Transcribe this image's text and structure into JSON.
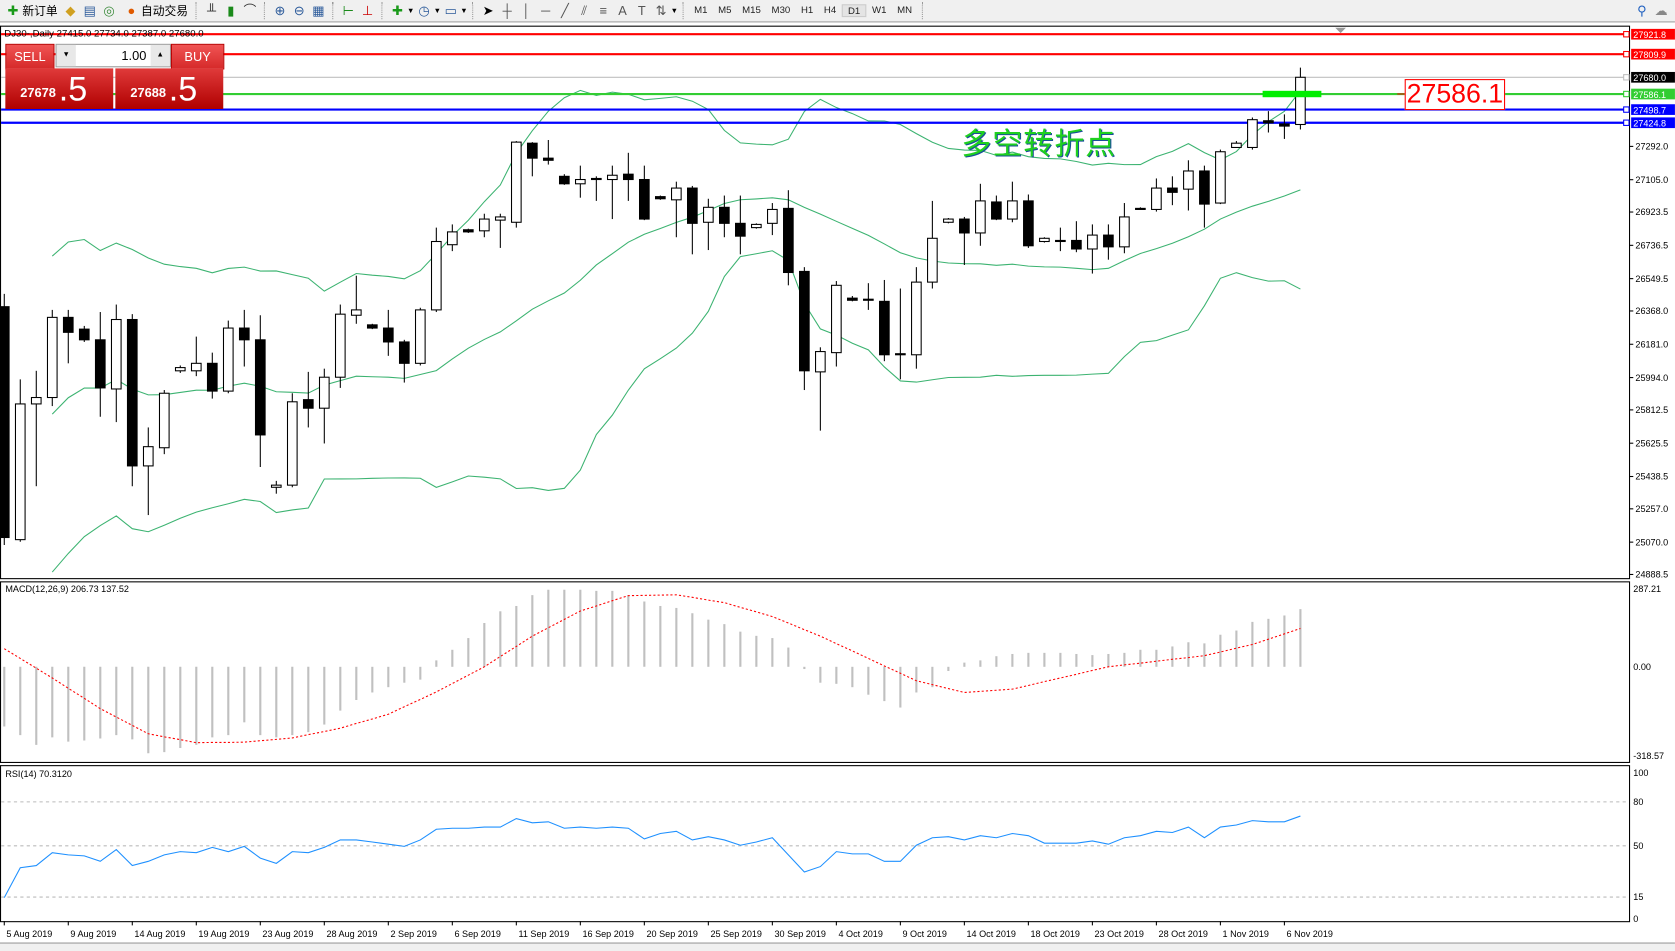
{
  "toolbar": {
    "new_order": "新订单",
    "auto_trading": "自动交易",
    "timeframes": [
      "M1",
      "M5",
      "M15",
      "M30",
      "H1",
      "H4",
      "D1",
      "W1",
      "MN"
    ],
    "active_timeframe": "D1",
    "icons": [
      "new-order-icon",
      "experts-icon",
      "history-icon",
      "signal-icon",
      "auto-trading-icon",
      "bar-chart-icon",
      "candlestick-icon",
      "line-chart-icon",
      "zoom-in-icon",
      "zoom-out-icon",
      "tile-windows-icon",
      "chart-shift-icon",
      "autoscroll-icon",
      "indicators-icon",
      "periods-icon",
      "templates-icon",
      "cursor-icon",
      "crosshair-icon",
      "vertical-line-icon",
      "horizontal-line-icon",
      "trendline-icon",
      "channel-icon",
      "fibonacci-icon",
      "text-icon",
      "text-label-icon",
      "arrows-icon",
      "search-icon",
      "community-icon"
    ]
  },
  "chart": {
    "title": "DJ30-,Daily  27415.0 27734.0 27387.0 27680.0",
    "annotation_text": "多空转折点",
    "price_label": "27586.1",
    "colors": {
      "up": "#ffffff",
      "down": "#000000",
      "bands": "#3cb371",
      "macd_hist": "#c0c0c0",
      "macd_signal": "#ff0000",
      "rsi": "#1e90ff",
      "red_line": "#ff0000",
      "green_line": "#32cd32",
      "blue_line": "#0000ff"
    }
  },
  "trade_panel": {
    "sell_label": "SELL",
    "buy_label": "BUY",
    "lots": "1.00",
    "sell_price_main": "27678",
    "sell_price_big": ".5",
    "buy_price_main": "27688",
    "buy_price_big": ".5"
  },
  "chart_data": [
    {
      "type": "candlestick",
      "symbol": "DJ30-",
      "period": "Daily",
      "ylim": [
        24888.5,
        27980
      ],
      "y_ticks": [
        "27292.0",
        "27105.0",
        "26923.5",
        "26736.5",
        "26549.5",
        "26368.0",
        "26181.0",
        "25994.0",
        "25812.5",
        "25625.5",
        "25438.5",
        "25257.0",
        "25070.0",
        "24888.5"
      ],
      "x_tick_labels": [
        "5 Aug 2019",
        "9 Aug 2019",
        "14 Aug 2019",
        "19 Aug 2019",
        "23 Aug 2019",
        "28 Aug 2019",
        "2 Sep 2019",
        "6 Sep 2019",
        "11 Sep 2019",
        "16 Sep 2019",
        "20 Sep 2019",
        "25 Sep 2019",
        "30 Sep 2019",
        "4 Oct 2019",
        "9 Oct 2019",
        "14 Oct 2019",
        "18 Oct 2019",
        "23 Oct 2019",
        "28 Oct 2019",
        "1 Nov 2019",
        "6 Nov 2019"
      ],
      "x_tick_every_bars": 4,
      "ohlc": [
        [
          26392,
          26464,
          25054,
          25096
        ],
        [
          25084,
          25984,
          25072,
          25846
        ],
        [
          25846,
          26032,
          25384,
          25882
        ],
        [
          25882,
          26374,
          25834,
          26332
        ],
        [
          26332,
          26374,
          26074,
          26248
        ],
        [
          26266,
          26284,
          26194,
          26206
        ],
        [
          26206,
          26362,
          25774,
          25936
        ],
        [
          25930,
          26404,
          25744,
          26320
        ],
        [
          26320,
          26350,
          25384,
          25498
        ],
        [
          25498,
          25714,
          25222,
          25606
        ],
        [
          25600,
          25924,
          25564,
          25906
        ],
        [
          26032,
          26062,
          26020,
          26050
        ],
        [
          26032,
          26224,
          26002,
          26074
        ],
        [
          26074,
          26134,
          25876,
          25918
        ],
        [
          25918,
          26314,
          25906,
          26272
        ],
        [
          26272,
          26374,
          26056,
          26206
        ],
        [
          26206,
          26344,
          25492,
          25672
        ],
        [
          25378,
          25414,
          25342,
          25390
        ],
        [
          25390,
          25906,
          25378,
          25858
        ],
        [
          25870,
          26026,
          25714,
          25822
        ],
        [
          25822,
          26044,
          25624,
          25996
        ],
        [
          25996,
          26404,
          25936,
          26350
        ],
        [
          26344,
          26566,
          26296,
          26374
        ],
        [
          26290,
          26296,
          26266,
          26272
        ],
        [
          26272,
          26374,
          26116,
          26194
        ],
        [
          26194,
          26206,
          25966,
          26074
        ],
        [
          26074,
          26386,
          26062,
          26374
        ],
        [
          26374,
          26836,
          26362,
          26758
        ],
        [
          26740,
          26854,
          26704,
          26812
        ],
        [
          26824,
          26830,
          26806,
          26812
        ],
        [
          26818,
          26914,
          26782,
          26884
        ],
        [
          26878,
          26914,
          26722,
          26896
        ],
        [
          26866,
          27322,
          26836,
          27316
        ],
        [
          27310,
          27316,
          27124,
          27226
        ],
        [
          27226,
          27328,
          27190,
          27214
        ],
        [
          27124,
          27136,
          27076,
          27082
        ],
        [
          27082,
          27184,
          27004,
          27106
        ],
        [
          27112,
          27124,
          26986,
          27106
        ],
        [
          27106,
          27184,
          26884,
          27130
        ],
        [
          27136,
          27256,
          26986,
          27106
        ],
        [
          27106,
          27184,
          26878,
          26884
        ],
        [
          27010,
          27016,
          26992,
          26998
        ],
        [
          26992,
          27094,
          26782,
          27058
        ],
        [
          27058,
          27070,
          26686,
          26860
        ],
        [
          26866,
          26998,
          26710,
          26950
        ],
        [
          26950,
          27016,
          26782,
          26860
        ],
        [
          26860,
          27016,
          26686,
          26788
        ],
        [
          26836,
          26860,
          26830,
          26854
        ],
        [
          26860,
          26974,
          26794,
          26938
        ],
        [
          26944,
          27046,
          26512,
          26584
        ],
        [
          26590,
          26614,
          25924,
          26032
        ],
        [
          26026,
          26164,
          25696,
          26140
        ],
        [
          26134,
          26536,
          26056,
          26512
        ],
        [
          26440,
          26452,
          26422,
          26428
        ],
        [
          26434,
          26524,
          26374,
          26428
        ],
        [
          26422,
          26542,
          26086,
          26122
        ],
        [
          26128,
          26494,
          25984,
          26122
        ],
        [
          26122,
          26614,
          26044,
          26530
        ],
        [
          26530,
          26986,
          26494,
          26776
        ],
        [
          26866,
          26890,
          26860,
          26884
        ],
        [
          26884,
          26896,
          26626,
          26806
        ],
        [
          26806,
          27082,
          26734,
          26986
        ],
        [
          26980,
          27016,
          26878,
          26884
        ],
        [
          26884,
          27094,
          26866,
          26986
        ],
        [
          26986,
          27022,
          26722,
          26734
        ],
        [
          26758,
          26782,
          26752,
          26776
        ],
        [
          26764,
          26836,
          26704,
          26764
        ],
        [
          26764,
          26872,
          26698,
          26716
        ],
        [
          26716,
          26854,
          26578,
          26794
        ],
        [
          26794,
          26854,
          26656,
          26728
        ],
        [
          26728,
          26974,
          26692,
          26896
        ],
        [
          26944,
          26950,
          26938,
          26944
        ],
        [
          26938,
          27112,
          26926,
          27058
        ],
        [
          27058,
          27124,
          26962,
          27034
        ],
        [
          27052,
          27214,
          26932,
          27154
        ],
        [
          27154,
          27184,
          26836,
          26968
        ],
        [
          26974,
          27274,
          26968,
          27262
        ],
        [
          27286,
          27322,
          27286,
          27310
        ],
        [
          27286,
          27454,
          27274,
          27442
        ],
        [
          27436,
          27490,
          27370,
          27424
        ],
        [
          27418,
          27472,
          27334,
          27406
        ],
        [
          27415,
          27734,
          27387,
          27680
        ]
      ],
      "indicator": "Bollinger Bands (20, 2)",
      "horizontal_lines": [
        {
          "price": "27921.8",
          "color": "#ff0000",
          "label_bg": "#ff0000"
        },
        {
          "price": "27809.9",
          "color": "#ff0000",
          "label_bg": "#ff0000"
        },
        {
          "price": "27680.0",
          "color": "#c0c0c0",
          "label_bg": "#000000"
        },
        {
          "price": "27586.1",
          "color": "#32cd32",
          "label_bg": "#32cd32"
        },
        {
          "price": "27498.7",
          "color": "#0000ff",
          "label_bg": "#0000ff"
        },
        {
          "price": "27424.8",
          "color": "#0000ff",
          "label_bg": "#0000ff"
        }
      ]
    },
    {
      "type": "bar+line",
      "title": "MACD(12,26,9) 206.73 137.52",
      "ylim": [
        -318.57,
        287.21
      ],
      "y_ticks": [
        "287.21",
        "0.00",
        "-318.57"
      ],
      "macd": [
        -214,
        -245,
        -280,
        -253,
        -268,
        -264,
        -257,
        -245,
        -260,
        -310,
        -306,
        -291,
        -280,
        -253,
        -245,
        -199,
        -245,
        -253,
        -245,
        -234,
        -207,
        -157,
        -119,
        -92,
        -73,
        -57,
        -46,
        23,
        61,
        103,
        157,
        199,
        218,
        257,
        276,
        276,
        276,
        272,
        272,
        257,
        234,
        218,
        211,
        192,
        169,
        153,
        126,
        111,
        103,
        69,
        -8,
        -57,
        -61,
        -73,
        -100,
        -123,
        -146,
        -92,
        -73,
        -15,
        15,
        23,
        38,
        46,
        50,
        50,
        50,
        46,
        42,
        46,
        50,
        61,
        61,
        73,
        88,
        84,
        115,
        130,
        161,
        172,
        184,
        206.73
      ],
      "signal": [
        65,
        30,
        -5,
        -40,
        -77,
        -113,
        -150,
        -180,
        -210,
        -240,
        -251,
        -261,
        -272,
        -271,
        -271,
        -270,
        -265,
        -260,
        -255,
        -243,
        -232,
        -220,
        -203,
        -187,
        -170,
        -143,
        -117,
        -90,
        -60,
        -30,
        0,
        37,
        73,
        110,
        140,
        170,
        200,
        218,
        237,
        255,
        256,
        257,
        258,
        249,
        239,
        230,
        213,
        197,
        180,
        157,
        133,
        110,
        83,
        57,
        30,
        3,
        -23,
        -50,
        -64,
        -78,
        -92,
        -88,
        -84,
        -80,
        -67,
        -53,
        -40,
        -27,
        -13,
        0,
        7,
        13,
        20,
        27,
        33,
        40,
        53,
        67,
        80,
        99,
        118,
        137.52
      ]
    },
    {
      "type": "line",
      "title": "RSI(14) 70.3120",
      "ylim": [
        0,
        100
      ],
      "y_ticks": [
        "100",
        "80",
        "50",
        "15",
        "0"
      ],
      "levels": [
        80,
        50,
        15
      ],
      "values": [
        14.6,
        35.0,
        36.5,
        45.3,
        43.8,
        43.1,
        39.4,
        47.4,
        36.5,
        39.4,
        43.8,
        46.0,
        45.3,
        48.9,
        46.0,
        49.6,
        41.6,
        38.0,
        46.0,
        45.3,
        48.9,
        54.0,
        54.0,
        52.6,
        51.1,
        49.6,
        54.0,
        61.3,
        62.0,
        62.0,
        62.8,
        62.8,
        68.6,
        65.7,
        66.4,
        62.0,
        62.8,
        62.0,
        62.8,
        62.0,
        54.7,
        58.4,
        59.9,
        54.0,
        56.2,
        54.0,
        50.4,
        52.6,
        55.5,
        43.8,
        32.1,
        35.8,
        46.0,
        44.5,
        44.5,
        39.4,
        39.4,
        50.4,
        55.5,
        56.2,
        54.0,
        56.9,
        55.5,
        58.4,
        56.9,
        51.8,
        51.8,
        51.8,
        53.3,
        51.1,
        55.5,
        56.9,
        59.9,
        59.1,
        62.8,
        55.5,
        62.8,
        64.2,
        67.2,
        66.4,
        66.4,
        70.312
      ]
    }
  ]
}
